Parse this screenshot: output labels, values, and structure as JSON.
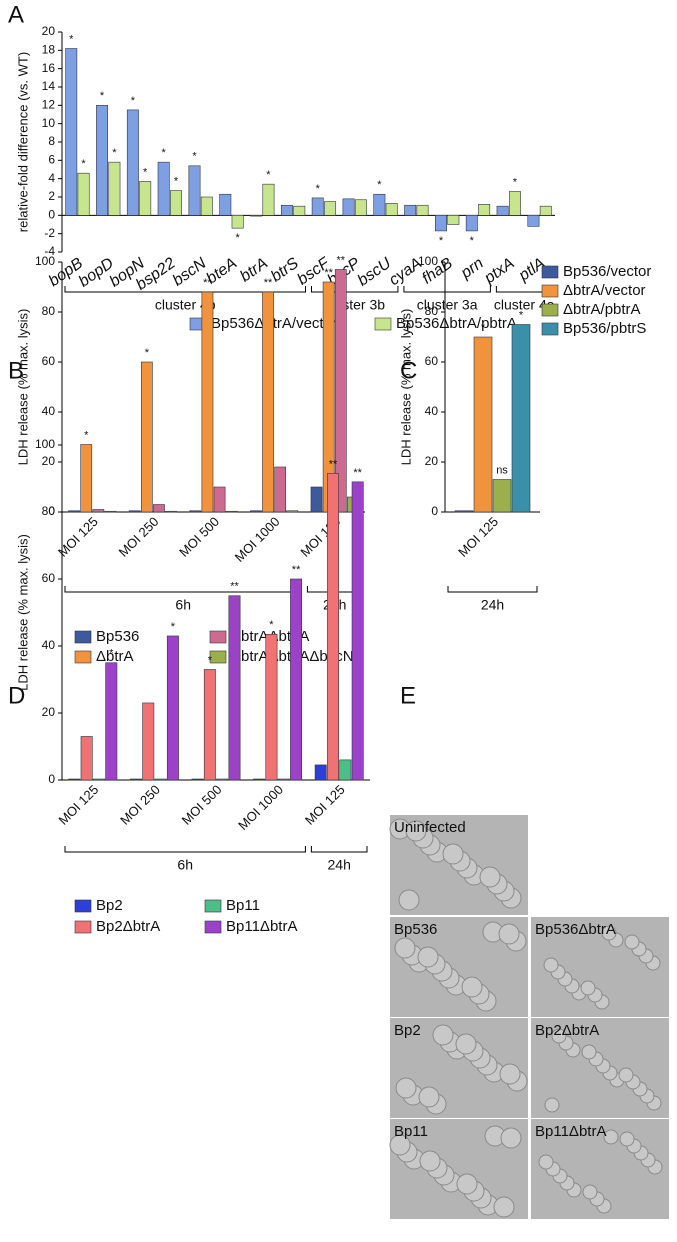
{
  "chart_data": [
    {
      "type": "bar",
      "panel": "A",
      "ylabel": "relative-fold difference (vs. WT)",
      "categories": [
        "bopB",
        "bopD",
        "bopN",
        "bsp22",
        "bscN",
        "bteA",
        "btrA",
        "btrS",
        "bscF",
        "bscP",
        "bscU",
        "cyaA",
        "fhaB",
        "prn",
        "ptxA",
        "ptlA"
      ],
      "groups": [
        {
          "label": "cluster 4b",
          "size": 8
        },
        {
          "label": "cluster 3b",
          "size": 3
        },
        {
          "label": "cluster 3a",
          "size": 3
        },
        {
          "label": "cluster 4a",
          "size": 2
        }
      ],
      "series": [
        {
          "name": "Bp536ΔbtrA/vector",
          "color": "#7f9fe3",
          "values": [
            18.2,
            12,
            11.5,
            5.8,
            5.4,
            2.3,
            0,
            1.1,
            1.9,
            1.8,
            2.3,
            1.1,
            -1.7,
            -1.7,
            1.0,
            -1.2
          ],
          "significance": [
            "*",
            "*",
            "*",
            "*",
            "*",
            null,
            null,
            null,
            "*",
            null,
            "*",
            null,
            "*",
            "*",
            null,
            null
          ]
        },
        {
          "name": "Bp536ΔbtrA/pbtrA",
          "color": "#c6e58c",
          "values": [
            4.6,
            5.8,
            3.7,
            2.7,
            2.0,
            -1.4,
            3.4,
            1.0,
            1.5,
            1.7,
            1.3,
            1.1,
            -1.0,
            1.2,
            2.6,
            1.0
          ],
          "significance": [
            "*",
            "*",
            "*",
            "*",
            null,
            "*",
            "*",
            null,
            null,
            null,
            null,
            null,
            null,
            null,
            "*",
            null
          ]
        }
      ],
      "ylim": [
        -4,
        20
      ],
      "yticks": [
        -4,
        -2,
        0,
        2,
        4,
        6,
        8,
        10,
        12,
        14,
        16,
        18,
        20
      ],
      "legend": "bottom"
    },
    {
      "type": "bar",
      "panel": "B",
      "ylabel": "LDH release (% max. lysis)",
      "categories": [
        "MOI 125",
        "MOI 250",
        "MOI 500",
        "MOI 1000",
        "MOI 125"
      ],
      "groups": [
        {
          "label": "6h",
          "size": 4
        },
        {
          "label": "24h",
          "size": 1
        }
      ],
      "series": [
        {
          "name": "Bp536",
          "color": "#3d5a9c",
          "values": [
            0.5,
            0.5,
            0.5,
            0.5,
            10
          ],
          "significance": [
            null,
            null,
            null,
            null,
            null
          ]
        },
        {
          "name": "ΔbtrA",
          "color": "#f0933c",
          "values": [
            27,
            60,
            88,
            88,
            92
          ],
          "significance": [
            "*",
            "*",
            "**",
            "**",
            "**"
          ]
        },
        {
          "name": "ΔbtrAΔbteA",
          "color": "#cc6b8f",
          "values": [
            1,
            3,
            10,
            18,
            97
          ],
          "significance": [
            null,
            null,
            null,
            null,
            "**"
          ]
        },
        {
          "name": "ΔbtrAΔbteAΔbscN",
          "color": "#9bb04c",
          "values": [
            0.3,
            0.3,
            0.3,
            0.5,
            6
          ],
          "significance": [
            null,
            null,
            null,
            null,
            null
          ]
        }
      ],
      "ylim": [
        0,
        100
      ],
      "yticks": [
        0,
        20,
        40,
        60,
        80,
        100
      ],
      "legend": "bottom"
    },
    {
      "type": "bar",
      "panel": "C",
      "ylabel": "LDH release (% max. lysis)",
      "categories": [
        "MOI 125"
      ],
      "groups": [
        {
          "label": "24h",
          "size": 1
        }
      ],
      "series": [
        {
          "name": "Bp536/vector",
          "color": "#3d5a9c",
          "values": [
            0.5
          ],
          "significance": [
            null
          ]
        },
        {
          "name": "ΔbtrA/vector",
          "color": "#f0933c",
          "values": [
            70
          ],
          "significance": [
            "*"
          ]
        },
        {
          "name": "ΔbtrA/pbtrA",
          "color": "#9bb04c",
          "values": [
            13
          ],
          "significance": [
            "ns"
          ]
        },
        {
          "name": "Bp536/pbtrS",
          "color": "#3a90a8",
          "values": [
            75
          ],
          "significance": [
            "*"
          ]
        }
      ],
      "ylim": [
        0,
        100
      ],
      "yticks": [
        0,
        20,
        40,
        60,
        80,
        100
      ],
      "legend": "right"
    },
    {
      "type": "bar",
      "panel": "D",
      "ylabel": "LDH release (% max. lysis)",
      "categories": [
        "MOI 125",
        "MOI 250",
        "MOI 500",
        "MOI 1000",
        "MOI 125"
      ],
      "groups": [
        {
          "label": "6h",
          "size": 4
        },
        {
          "label": "24h",
          "size": 1
        }
      ],
      "series": [
        {
          "name": "Bp2",
          "color": "#2c3fd8",
          "values": [
            0.3,
            0.3,
            0.3,
            0.3,
            4.5
          ],
          "significance": [
            null,
            null,
            null,
            null,
            null
          ]
        },
        {
          "name": "Bp2ΔbtrA",
          "color": "#f07272",
          "values": [
            13,
            23,
            33,
            43.5,
            91.5
          ],
          "significance": [
            null,
            null,
            "*",
            "*",
            "**"
          ]
        },
        {
          "name": "Bp11",
          "color": "#4cbf86",
          "values": [
            0.3,
            0.3,
            0.3,
            0.3,
            6
          ],
          "significance": [
            null,
            null,
            null,
            null,
            null
          ]
        },
        {
          "name": "Bp11ΔbtrA",
          "color": "#9b42c9",
          "values": [
            35,
            43,
            55,
            60,
            89
          ],
          "significance": [
            "*",
            "*",
            "**",
            "**",
            "**"
          ]
        }
      ],
      "ylim": [
        0,
        100
      ],
      "yticks": [
        0,
        20,
        40,
        60,
        80,
        100
      ],
      "legend": "bottom"
    }
  ],
  "panel_e": {
    "label": "E",
    "images": [
      "Uninfected",
      "Bp536",
      "Bp536ΔbtrA",
      "Bp2",
      "Bp2ΔbtrA",
      "Bp11",
      "Bp11ΔbtrA"
    ]
  }
}
